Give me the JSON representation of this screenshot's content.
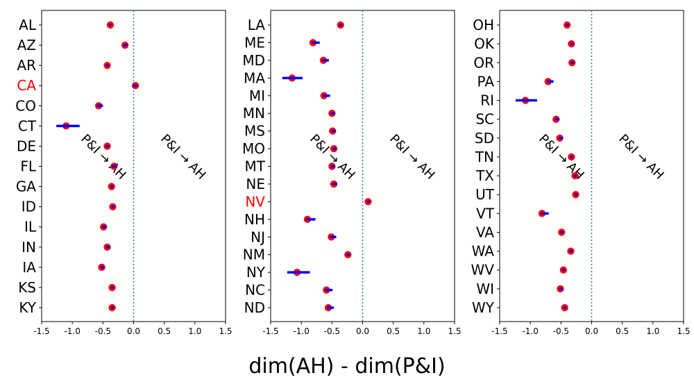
{
  "chart_data": {
    "type": "scatter",
    "xlabel": "dim(AH) - dim(P&I)",
    "xlim": [
      -1.5,
      1.5
    ],
    "xticks": [
      "-1.5",
      "-1.0",
      "-0.5",
      "0.0",
      "0.5",
      "1.0",
      "1.5"
    ],
    "reference_line_x": 0,
    "colors": {
      "marker": "#ff0000",
      "errorbar": "#0000ff",
      "refline": "#1f77b4",
      "highlight_label": "#ff0000",
      "label": "#000000"
    },
    "panels": [
      {
        "annotations": [
          "P&I → AH",
          "P&I → AH"
        ],
        "states": [
          {
            "label": "AL",
            "value": -0.38,
            "lo": -0.4,
            "hi": -0.36,
            "highlight": false
          },
          {
            "label": "AZ",
            "value": -0.14,
            "lo": -0.17,
            "hi": -0.1,
            "highlight": false
          },
          {
            "label": "AR",
            "value": -0.43,
            "lo": -0.45,
            "hi": -0.4,
            "highlight": false
          },
          {
            "label": "CA",
            "value": 0.03,
            "lo": -0.01,
            "hi": 0.06,
            "highlight": true
          },
          {
            "label": "CO",
            "value": -0.57,
            "lo": -0.6,
            "hi": -0.5,
            "highlight": false
          },
          {
            "label": "CT",
            "value": -1.1,
            "lo": -1.26,
            "hi": -0.88,
            "highlight": false
          },
          {
            "label": "DE",
            "value": -0.43,
            "lo": -0.45,
            "hi": -0.4,
            "highlight": false
          },
          {
            "label": "FL",
            "value": -0.32,
            "lo": -0.36,
            "hi": -0.28,
            "highlight": false
          },
          {
            "label": "GA",
            "value": -0.36,
            "lo": -0.38,
            "hi": -0.33,
            "highlight": false
          },
          {
            "label": "ID",
            "value": -0.34,
            "lo": -0.36,
            "hi": -0.31,
            "highlight": false
          },
          {
            "label": "IL",
            "value": -0.49,
            "lo": -0.51,
            "hi": -0.44,
            "highlight": false
          },
          {
            "label": "IN",
            "value": -0.43,
            "lo": -0.45,
            "hi": -0.39,
            "highlight": false
          },
          {
            "label": "IA",
            "value": -0.52,
            "lo": -0.54,
            "hi": -0.48,
            "highlight": false
          },
          {
            "label": "KS",
            "value": -0.35,
            "lo": -0.37,
            "hi": -0.32,
            "highlight": false
          },
          {
            "label": "KY",
            "value": -0.35,
            "lo": -0.37,
            "hi": -0.32,
            "highlight": false
          }
        ]
      },
      {
        "annotations": [
          "P&I → AH",
          "P&I → AH"
        ],
        "states": [
          {
            "label": "LA",
            "value": -0.36,
            "lo": -0.38,
            "hi": -0.33,
            "highlight": false
          },
          {
            "label": "ME",
            "value": -0.81,
            "lo": -0.83,
            "hi": -0.7,
            "highlight": false
          },
          {
            "label": "MD",
            "value": -0.64,
            "lo": -0.66,
            "hi": -0.55,
            "highlight": false
          },
          {
            "label": "MA",
            "value": -1.15,
            "lo": -1.31,
            "hi": -0.98,
            "highlight": false
          },
          {
            "label": "MI",
            "value": -0.63,
            "lo": -0.65,
            "hi": -0.53,
            "highlight": false
          },
          {
            "label": "MN",
            "value": -0.5,
            "lo": -0.52,
            "hi": -0.45,
            "highlight": false
          },
          {
            "label": "MS",
            "value": -0.49,
            "lo": -0.51,
            "hi": -0.44,
            "highlight": false
          },
          {
            "label": "MO",
            "value": -0.47,
            "lo": -0.49,
            "hi": -0.43,
            "highlight": false
          },
          {
            "label": "MT",
            "value": -0.5,
            "lo": -0.52,
            "hi": -0.45,
            "highlight": false
          },
          {
            "label": "NE",
            "value": -0.47,
            "lo": -0.49,
            "hi": -0.42,
            "highlight": false
          },
          {
            "label": "NV",
            "value": 0.09,
            "lo": 0.07,
            "hi": 0.12,
            "highlight": true
          },
          {
            "label": "NH",
            "value": -0.9,
            "lo": -0.92,
            "hi": -0.77,
            "highlight": false
          },
          {
            "label": "NJ",
            "value": -0.51,
            "lo": -0.53,
            "hi": -0.43,
            "highlight": false
          },
          {
            "label": "NM",
            "value": -0.24,
            "lo": -0.26,
            "hi": -0.21,
            "highlight": false
          },
          {
            "label": "NY",
            "value": -1.07,
            "lo": -1.23,
            "hi": -0.86,
            "highlight": false
          },
          {
            "label": "NC",
            "value": -0.59,
            "lo": -0.61,
            "hi": -0.49,
            "highlight": false
          },
          {
            "label": "ND",
            "value": -0.56,
            "lo": -0.58,
            "hi": -0.47,
            "highlight": false
          }
        ]
      },
      {
        "annotations": [
          "P&I → AH",
          "P&I → AH"
        ],
        "states": [
          {
            "label": "OH",
            "value": -0.4,
            "lo": -0.42,
            "hi": -0.37,
            "highlight": false
          },
          {
            "label": "OK",
            "value": -0.33,
            "lo": -0.35,
            "hi": -0.3,
            "highlight": false
          },
          {
            "label": "OR",
            "value": -0.32,
            "lo": -0.34,
            "hi": -0.29,
            "highlight": false
          },
          {
            "label": "PA",
            "value": -0.71,
            "lo": -0.73,
            "hi": -0.62,
            "highlight": false
          },
          {
            "label": "RI",
            "value": -1.08,
            "lo": -1.24,
            "hi": -0.89,
            "highlight": false
          },
          {
            "label": "SC",
            "value": -0.58,
            "lo": -0.6,
            "hi": -0.53,
            "highlight": false
          },
          {
            "label": "SD",
            "value": -0.52,
            "lo": -0.54,
            "hi": -0.47,
            "highlight": false
          },
          {
            "label": "TN",
            "value": -0.33,
            "lo": -0.35,
            "hi": -0.3,
            "highlight": false
          },
          {
            "label": "TX",
            "value": -0.27,
            "lo": -0.29,
            "hi": -0.24,
            "highlight": false
          },
          {
            "label": "UT",
            "value": -0.26,
            "lo": -0.28,
            "hi": -0.23,
            "highlight": false
          },
          {
            "label": "VT",
            "value": -0.81,
            "lo": -0.83,
            "hi": -0.7,
            "highlight": false
          },
          {
            "label": "VA",
            "value": -0.49,
            "lo": -0.51,
            "hi": -0.46,
            "highlight": false
          },
          {
            "label": "WA",
            "value": -0.34,
            "lo": -0.36,
            "hi": -0.31,
            "highlight": false
          },
          {
            "label": "WV",
            "value": -0.46,
            "lo": -0.48,
            "hi": -0.43,
            "highlight": false
          },
          {
            "label": "WI",
            "value": -0.51,
            "lo": -0.53,
            "hi": -0.47,
            "highlight": false
          },
          {
            "label": "WY",
            "value": -0.44,
            "lo": -0.46,
            "hi": -0.41,
            "highlight": false
          }
        ]
      }
    ]
  }
}
